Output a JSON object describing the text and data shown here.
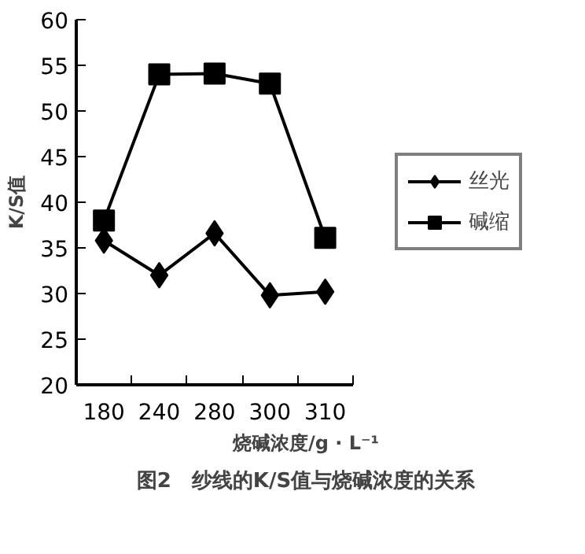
{
  "chart_data": {
    "type": "line",
    "title": "图2　纱线的K/S值与烧碱浓度的关系",
    "xlabel": "烧碱浓度/g · L⁻¹",
    "ylabel": "K/S值",
    "categories": [
      "180",
      "240",
      "280",
      "300",
      "310"
    ],
    "series": [
      {
        "name": "丝光",
        "color": "#000000",
        "marker": "diamond",
        "values": [
          35.8,
          32,
          36.6,
          29.8,
          30.2
        ]
      },
      {
        "name": "碱缩",
        "color": "#000000",
        "marker": "square",
        "values": [
          38,
          54,
          54.1,
          53,
          36.1
        ]
      }
    ],
    "ylim": [
      20,
      60
    ],
    "yticks": [
      20,
      25,
      30,
      35,
      40,
      45,
      50,
      55,
      60
    ],
    "grid": false,
    "legend": "right",
    "line_style": "solid"
  }
}
